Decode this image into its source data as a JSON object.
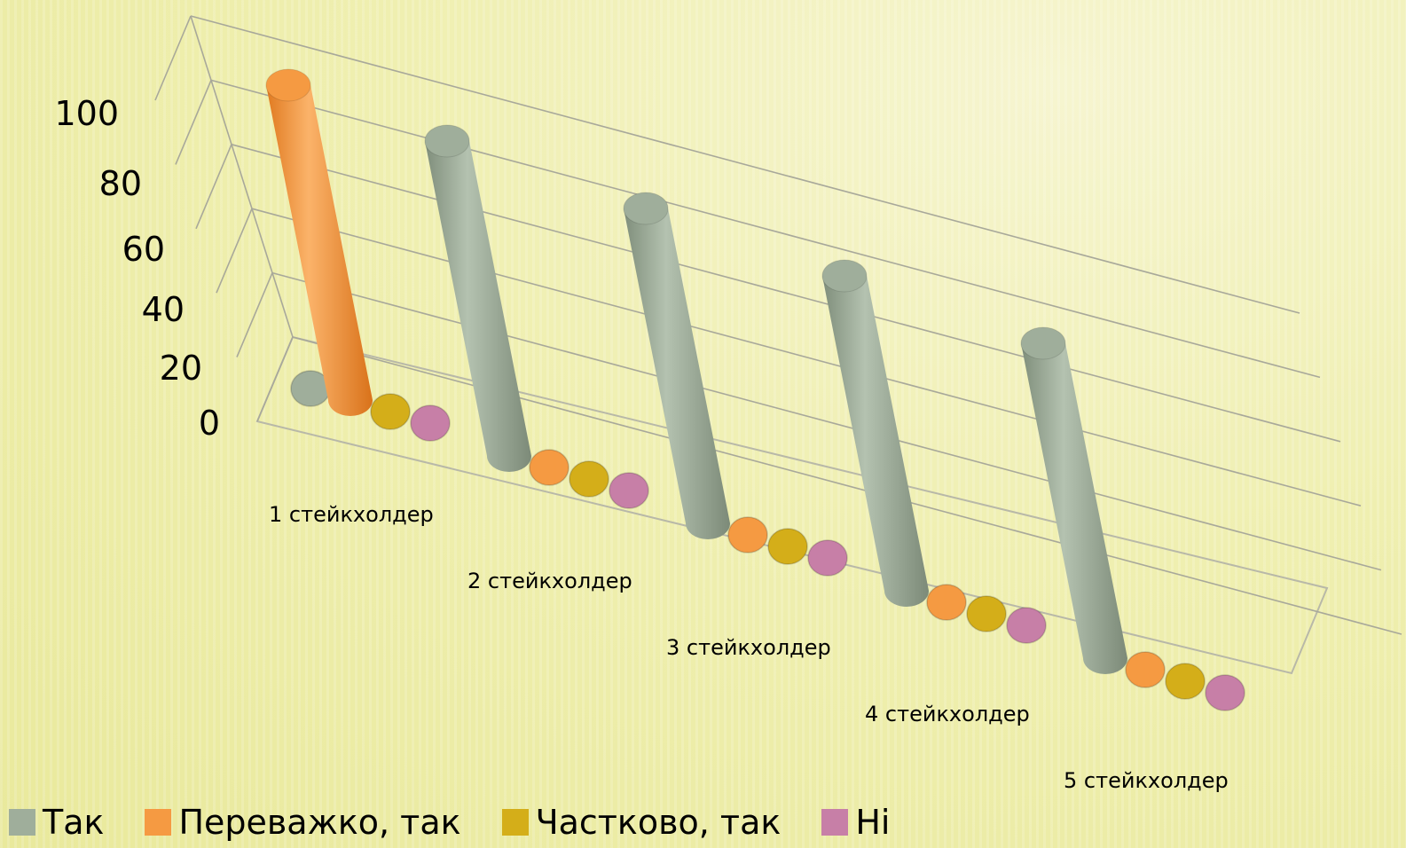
{
  "chart_data": {
    "type": "bar",
    "style": "3d-cylinder",
    "categories": [
      "1 стейкхолдер",
      "2 стейкхолдер",
      "3 стейкхолдер",
      "4 стейкхолдер",
      "5 стейкхолдер"
    ],
    "series": [
      {
        "name": "Так",
        "color": "#9fae9b",
        "values": [
          0,
          100,
          100,
          100,
          100
        ]
      },
      {
        "name": "Переважко, так",
        "color": "#f59a42",
        "values": [
          100,
          0,
          0,
          0,
          0
        ]
      },
      {
        "name": "Частково, так",
        "color": "#d4ae19",
        "values": [
          0,
          0,
          0,
          0,
          0
        ]
      },
      {
        "name": "Ні",
        "color": "#c77fa7",
        "values": [
          0,
          0,
          0,
          0,
          0
        ]
      }
    ],
    "yticks": [
      "0",
      "20",
      "40",
      "60",
      "80",
      "100"
    ],
    "ylim": [
      0,
      100
    ],
    "grid": true,
    "legend_position": "bottom-left"
  }
}
